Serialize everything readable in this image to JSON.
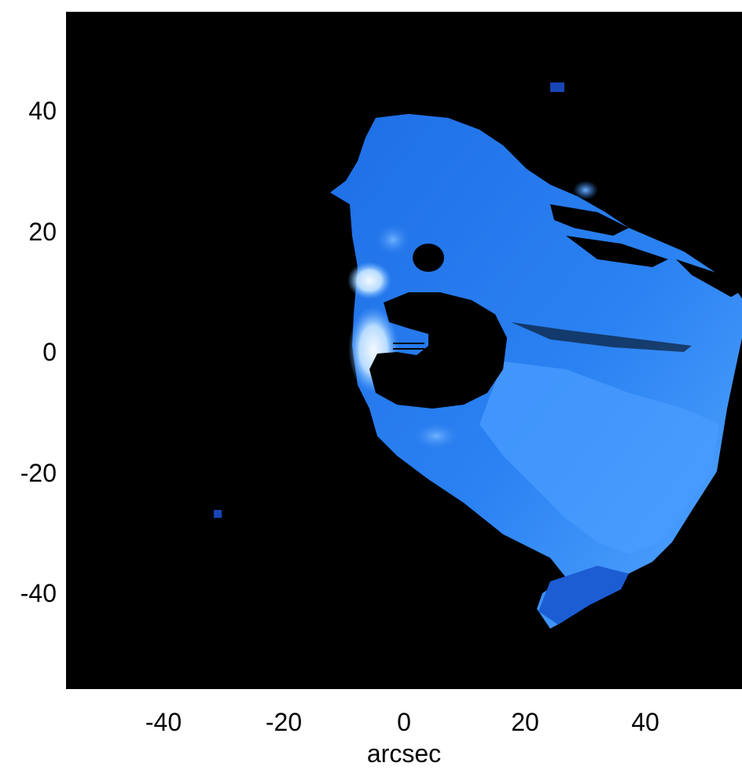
{
  "chart_data": {
    "type": "heatmap",
    "title": "",
    "xlabel": "arcsec",
    "ylabel": "",
    "xlim": [
      -56,
      56
    ],
    "ylim": [
      -56,
      56
    ],
    "x_ticks": [
      -40,
      -20,
      0,
      20,
      40
    ],
    "y_ticks": [
      40,
      20,
      0,
      -20,
      -40
    ],
    "x_tick_labels": [
      "-40",
      "-20",
      "0",
      "20",
      "40"
    ],
    "y_tick_labels": [
      "40",
      "20",
      "0",
      "-20",
      "-40"
    ],
    "grid": false,
    "colormap": [
      "#000000",
      "#0a3fb0",
      "#1e6ee8",
      "#5aa6ff",
      "#e6f2ff"
    ],
    "background_color": "#000000"
  }
}
